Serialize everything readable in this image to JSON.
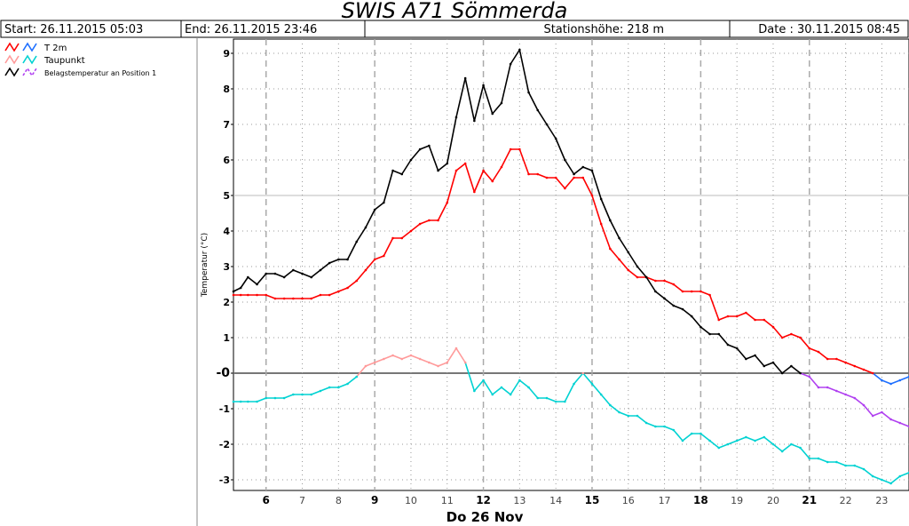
{
  "header": {
    "title": "SWIS A71 Sömmerda",
    "start": "Start: 26.11.2015 05:03",
    "end": "End: 26.11.2015 23:46",
    "station": "Stationshöhe: 218 m",
    "date": "Date : 30.11.2015 08:45"
  },
  "legend": [
    {
      "label": "T 2m",
      "color1": "#ff0000",
      "color2": "#1e6fff"
    },
    {
      "label": "Taupunkt",
      "color1": "#ff9a9a",
      "color2": "#00d2d2"
    },
    {
      "label": "Belagstemperatur an Position 1",
      "color1": "#000000",
      "color2": "#b040f0"
    }
  ],
  "chart_data": {
    "type": "line",
    "ylabel": "Temperatur (°C)",
    "xlabel": "Do 26 Nov",
    "ylim": [
      -3.3,
      9.4
    ],
    "xlim": [
      5.1,
      23.75
    ],
    "yticks": [
      "-3",
      "-2",
      "-1",
      "-0",
      "1",
      "2",
      "3",
      "4",
      "5",
      "6",
      "7",
      "8",
      "9"
    ],
    "xticks": [
      {
        "label": "6",
        "value": 6,
        "major": true
      },
      {
        "label": "7",
        "value": 7,
        "major": false
      },
      {
        "label": "8",
        "value": 8,
        "major": false
      },
      {
        "label": "9",
        "value": 9,
        "major": true
      },
      {
        "label": "10",
        "value": 10,
        "major": false
      },
      {
        "label": "11",
        "value": 11,
        "major": false
      },
      {
        "label": "12",
        "value": 12,
        "major": true
      },
      {
        "label": "13",
        "value": 13,
        "major": false
      },
      {
        "label": "14",
        "value": 14,
        "major": false
      },
      {
        "label": "15",
        "value": 15,
        "major": true
      },
      {
        "label": "16",
        "value": 16,
        "major": false
      },
      {
        "label": "17",
        "value": 17,
        "major": false
      },
      {
        "label": "18",
        "value": 18,
        "major": true
      },
      {
        "label": "19",
        "value": 19,
        "major": false
      },
      {
        "label": "20",
        "value": 20,
        "major": false
      },
      {
        "label": "21",
        "value": 21,
        "major": true
      },
      {
        "label": "22",
        "value": 22,
        "major": false
      },
      {
        "label": "23",
        "value": 23,
        "major": false
      }
    ],
    "grid": true,
    "series": [
      {
        "name": "T 2m",
        "color_pos": "#ff0000",
        "color_neg": "#1e6fff",
        "points": [
          [
            5.1,
            2.2
          ],
          [
            5.3,
            2.2
          ],
          [
            5.5,
            2.2
          ],
          [
            5.75,
            2.2
          ],
          [
            6.0,
            2.2
          ],
          [
            6.25,
            2.1
          ],
          [
            6.5,
            2.1
          ],
          [
            6.75,
            2.1
          ],
          [
            7.0,
            2.1
          ],
          [
            7.25,
            2.1
          ],
          [
            7.5,
            2.2
          ],
          [
            7.75,
            2.2
          ],
          [
            8.0,
            2.3
          ],
          [
            8.25,
            2.4
          ],
          [
            8.5,
            2.6
          ],
          [
            8.75,
            2.9
          ],
          [
            9.0,
            3.2
          ],
          [
            9.25,
            3.3
          ],
          [
            9.5,
            3.8
          ],
          [
            9.75,
            3.8
          ],
          [
            10.0,
            4.0
          ],
          [
            10.25,
            4.2
          ],
          [
            10.5,
            4.3
          ],
          [
            10.75,
            4.3
          ],
          [
            11.0,
            4.8
          ],
          [
            11.25,
            5.7
          ],
          [
            11.5,
            5.9
          ],
          [
            11.75,
            5.1
          ],
          [
            12.0,
            5.7
          ],
          [
            12.25,
            5.4
          ],
          [
            12.5,
            5.8
          ],
          [
            12.75,
            6.3
          ],
          [
            13.0,
            6.3
          ],
          [
            13.25,
            5.6
          ],
          [
            13.5,
            5.6
          ],
          [
            13.75,
            5.5
          ],
          [
            14.0,
            5.5
          ],
          [
            14.25,
            5.2
          ],
          [
            14.5,
            5.5
          ],
          [
            14.75,
            5.5
          ],
          [
            15.0,
            5.0
          ],
          [
            15.25,
            4.2
          ],
          [
            15.5,
            3.5
          ],
          [
            15.75,
            3.2
          ],
          [
            16.0,
            2.9
          ],
          [
            16.25,
            2.7
          ],
          [
            16.5,
            2.7
          ],
          [
            16.75,
            2.6
          ],
          [
            17.0,
            2.6
          ],
          [
            17.25,
            2.5
          ],
          [
            17.5,
            2.3
          ],
          [
            17.75,
            2.3
          ],
          [
            18.0,
            2.3
          ],
          [
            18.25,
            2.2
          ],
          [
            18.5,
            1.5
          ],
          [
            18.75,
            1.6
          ],
          [
            19.0,
            1.6
          ],
          [
            19.25,
            1.7
          ],
          [
            19.5,
            1.5
          ],
          [
            19.75,
            1.5
          ],
          [
            20.0,
            1.3
          ],
          [
            20.25,
            1.0
          ],
          [
            20.5,
            1.1
          ],
          [
            20.75,
            1.0
          ],
          [
            21.0,
            0.7
          ],
          [
            21.25,
            0.6
          ],
          [
            21.5,
            0.4
          ],
          [
            21.75,
            0.4
          ],
          [
            22.0,
            0.3
          ],
          [
            22.25,
            0.2
          ],
          [
            22.5,
            0.1
          ],
          [
            22.75,
            0.0
          ],
          [
            23.0,
            -0.2
          ],
          [
            23.25,
            -0.3
          ],
          [
            23.5,
            -0.2
          ],
          [
            23.75,
            -0.1
          ]
        ]
      },
      {
        "name": "Taupunkt",
        "color_pos": "#ff9a9a",
        "color_neg": "#00d2d2",
        "points": [
          [
            5.1,
            -0.8
          ],
          [
            5.3,
            -0.8
          ],
          [
            5.5,
            -0.8
          ],
          [
            5.75,
            -0.8
          ],
          [
            6.0,
            -0.7
          ],
          [
            6.25,
            -0.7
          ],
          [
            6.5,
            -0.7
          ],
          [
            6.75,
            -0.6
          ],
          [
            7.0,
            -0.6
          ],
          [
            7.25,
            -0.6
          ],
          [
            7.5,
            -0.5
          ],
          [
            7.75,
            -0.4
          ],
          [
            8.0,
            -0.4
          ],
          [
            8.25,
            -0.3
          ],
          [
            8.5,
            -0.1
          ],
          [
            8.75,
            0.2
          ],
          [
            9.0,
            0.3
          ],
          [
            9.25,
            0.4
          ],
          [
            9.5,
            0.5
          ],
          [
            9.75,
            0.4
          ],
          [
            10.0,
            0.5
          ],
          [
            10.25,
            0.4
          ],
          [
            10.5,
            0.3
          ],
          [
            10.75,
            0.2
          ],
          [
            11.0,
            0.3
          ],
          [
            11.25,
            0.7
          ],
          [
            11.5,
            0.3
          ],
          [
            11.75,
            -0.5
          ],
          [
            12.0,
            -0.2
          ],
          [
            12.25,
            -0.6
          ],
          [
            12.5,
            -0.4
          ],
          [
            12.75,
            -0.6
          ],
          [
            13.0,
            -0.2
          ],
          [
            13.25,
            -0.4
          ],
          [
            13.5,
            -0.7
          ],
          [
            13.75,
            -0.7
          ],
          [
            14.0,
            -0.8
          ],
          [
            14.25,
            -0.8
          ],
          [
            14.5,
            -0.3
          ],
          [
            14.75,
            0.0
          ],
          [
            15.0,
            -0.3
          ],
          [
            15.25,
            -0.6
          ],
          [
            15.5,
            -0.9
          ],
          [
            15.75,
            -1.1
          ],
          [
            16.0,
            -1.2
          ],
          [
            16.25,
            -1.2
          ],
          [
            16.5,
            -1.4
          ],
          [
            16.75,
            -1.5
          ],
          [
            17.0,
            -1.5
          ],
          [
            17.25,
            -1.6
          ],
          [
            17.5,
            -1.9
          ],
          [
            17.75,
            -1.7
          ],
          [
            18.0,
            -1.7
          ],
          [
            18.25,
            -1.9
          ],
          [
            18.5,
            -2.1
          ],
          [
            18.75,
            -2.0
          ],
          [
            19.0,
            -1.9
          ],
          [
            19.25,
            -1.8
          ],
          [
            19.5,
            -1.9
          ],
          [
            19.75,
            -1.8
          ],
          [
            20.0,
            -2.0
          ],
          [
            20.25,
            -2.2
          ],
          [
            20.5,
            -2.0
          ],
          [
            20.75,
            -2.1
          ],
          [
            21.0,
            -2.4
          ],
          [
            21.25,
            -2.4
          ],
          [
            21.5,
            -2.5
          ],
          [
            21.75,
            -2.5
          ],
          [
            22.0,
            -2.6
          ],
          [
            22.25,
            -2.6
          ],
          [
            22.5,
            -2.7
          ],
          [
            22.75,
            -2.9
          ],
          [
            23.0,
            -3.0
          ],
          [
            23.25,
            -3.1
          ],
          [
            23.5,
            -2.9
          ],
          [
            23.75,
            -2.8
          ]
        ]
      },
      {
        "name": "Belagstemperatur an Position 1",
        "color_pos": "#000000",
        "color_neg": "#b040f0",
        "points": [
          [
            5.1,
            2.3
          ],
          [
            5.3,
            2.4
          ],
          [
            5.5,
            2.7
          ],
          [
            5.75,
            2.5
          ],
          [
            6.0,
            2.8
          ],
          [
            6.25,
            2.8
          ],
          [
            6.5,
            2.7
          ],
          [
            6.75,
            2.9
          ],
          [
            7.0,
            2.8
          ],
          [
            7.25,
            2.7
          ],
          [
            7.5,
            2.9
          ],
          [
            7.75,
            3.1
          ],
          [
            8.0,
            3.2
          ],
          [
            8.25,
            3.2
          ],
          [
            8.5,
            3.7
          ],
          [
            8.75,
            4.1
          ],
          [
            9.0,
            4.6
          ],
          [
            9.25,
            4.8
          ],
          [
            9.5,
            5.7
          ],
          [
            9.75,
            5.6
          ],
          [
            10.0,
            6.0
          ],
          [
            10.25,
            6.3
          ],
          [
            10.5,
            6.4
          ],
          [
            10.75,
            5.7
          ],
          [
            11.0,
            5.9
          ],
          [
            11.25,
            7.2
          ],
          [
            11.5,
            8.3
          ],
          [
            11.75,
            7.1
          ],
          [
            12.0,
            8.1
          ],
          [
            12.25,
            7.3
          ],
          [
            12.5,
            7.6
          ],
          [
            12.75,
            8.7
          ],
          [
            13.0,
            9.1
          ],
          [
            13.25,
            7.9
          ],
          [
            13.5,
            7.4
          ],
          [
            13.75,
            7.0
          ],
          [
            14.0,
            6.6
          ],
          [
            14.25,
            6.0
          ],
          [
            14.5,
            5.6
          ],
          [
            14.75,
            5.8
          ],
          [
            15.0,
            5.7
          ],
          [
            15.25,
            4.9
          ],
          [
            15.5,
            4.3
          ],
          [
            15.75,
            3.8
          ],
          [
            16.0,
            3.4
          ],
          [
            16.25,
            3.0
          ],
          [
            16.5,
            2.7
          ],
          [
            16.75,
            2.3
          ],
          [
            17.0,
            2.1
          ],
          [
            17.25,
            1.9
          ],
          [
            17.5,
            1.8
          ],
          [
            17.75,
            1.6
          ],
          [
            18.0,
            1.3
          ],
          [
            18.25,
            1.1
          ],
          [
            18.5,
            1.1
          ],
          [
            18.75,
            0.8
          ],
          [
            19.0,
            0.7
          ],
          [
            19.25,
            0.4
          ],
          [
            19.5,
            0.5
          ],
          [
            19.75,
            0.2
          ],
          [
            20.0,
            0.3
          ],
          [
            20.25,
            0.0
          ],
          [
            20.5,
            0.2
          ],
          [
            20.75,
            0.0
          ],
          [
            21.0,
            -0.1
          ],
          [
            21.25,
            -0.4
          ],
          [
            21.5,
            -0.4
          ],
          [
            21.75,
            -0.5
          ],
          [
            22.0,
            -0.6
          ],
          [
            22.25,
            -0.7
          ],
          [
            22.5,
            -0.9
          ],
          [
            22.75,
            -1.2
          ],
          [
            23.0,
            -1.1
          ],
          [
            23.25,
            -1.3
          ],
          [
            23.5,
            -1.4
          ],
          [
            23.75,
            -1.5
          ]
        ]
      }
    ]
  }
}
